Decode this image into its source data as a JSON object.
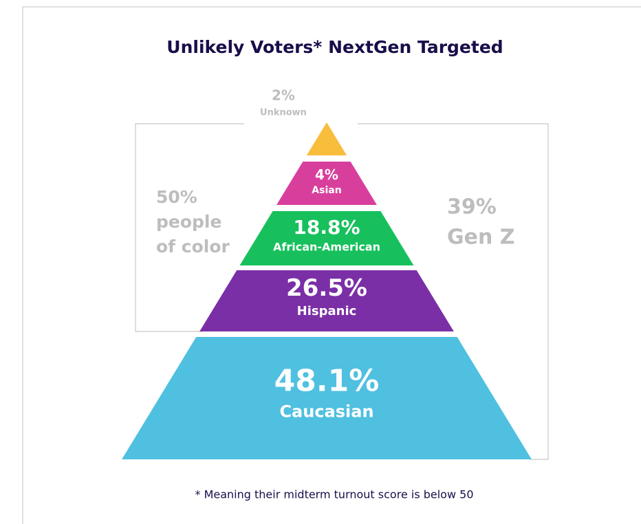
{
  "chart_data": {
    "type": "pyramid",
    "title": "Unlikely Voters* NextGen Targeted",
    "categories": [
      "Unknown",
      "Asian",
      "African-American",
      "Hispanic",
      "Caucasian"
    ],
    "values": [
      2,
      4,
      18.8,
      26.5,
      48.1
    ],
    "value_labels": [
      "2%",
      "4%",
      "18.8%",
      "26.5%",
      "48.1%"
    ],
    "colors": [
      "#f9bd3c",
      "#d83f9d",
      "#17c05c",
      "#7b2fa6",
      "#4fc0e0"
    ],
    "annotations": [
      {
        "lines": [
          "50%",
          "people",
          "of color"
        ]
      },
      {
        "lines": [
          "39%",
          "Gen Z"
        ]
      }
    ],
    "footnote": "* Meaning their midterm turnout score is below 50"
  }
}
